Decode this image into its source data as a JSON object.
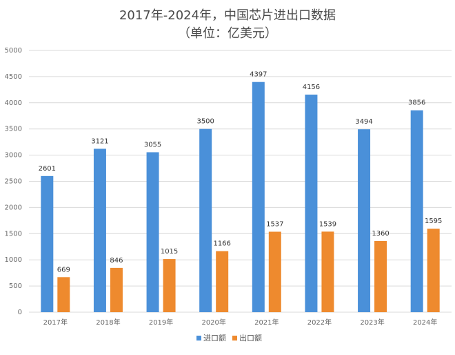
{
  "chart_data": {
    "type": "bar",
    "title": "2017年-2024年，中国芯片进出口数据",
    "subtitle": "（单位：亿美元）",
    "categories": [
      "2017年",
      "2018年",
      "2019年",
      "2020年",
      "2021年",
      "2022年",
      "2023年",
      "2024年"
    ],
    "series": [
      {
        "name": "进口额",
        "values": [
          2601,
          3121,
          3055,
          3500,
          4397,
          4156,
          3494,
          3856
        ],
        "color": "#4a90d9"
      },
      {
        "name": "出口额",
        "values": [
          669,
          846,
          1015,
          1166,
          1537,
          1539,
          1360,
          1595
        ],
        "color": "#ee8a2e"
      }
    ],
    "ylim": [
      0,
      5000
    ],
    "yticks": [
      0,
      500,
      1000,
      1500,
      2000,
      2500,
      3000,
      3500,
      4000,
      4500,
      5000
    ],
    "grid": true,
    "legend": "bottom"
  }
}
